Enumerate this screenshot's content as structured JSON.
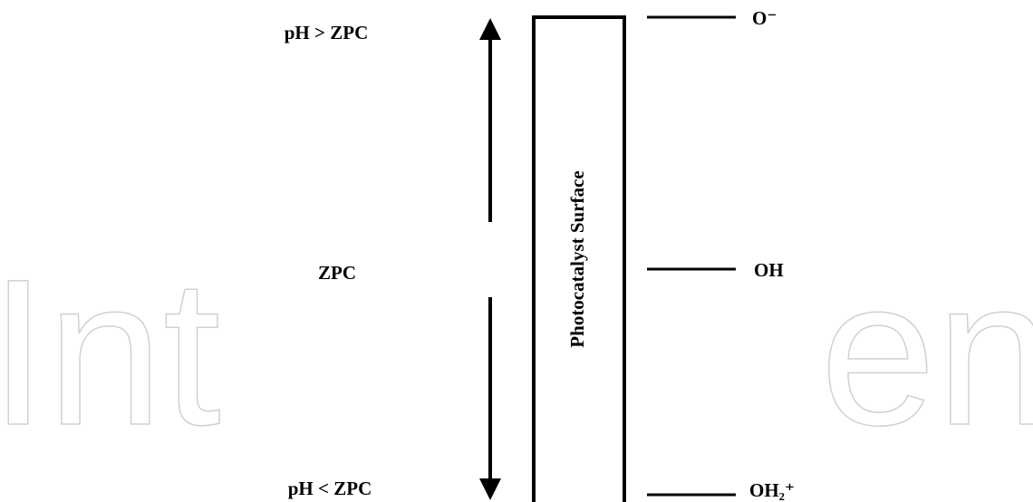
{
  "watermark": [
    "Int",
    "en"
  ],
  "left_labels": {
    "top": "pH > ZPC",
    "middle": "ZPC",
    "bottom": "pH < ZPC"
  },
  "surface": {
    "label": "Photocatalyst Surface"
  },
  "right_labels": {
    "top": "O⁻",
    "middle": "OH",
    "bottom": "OH₂⁺"
  }
}
